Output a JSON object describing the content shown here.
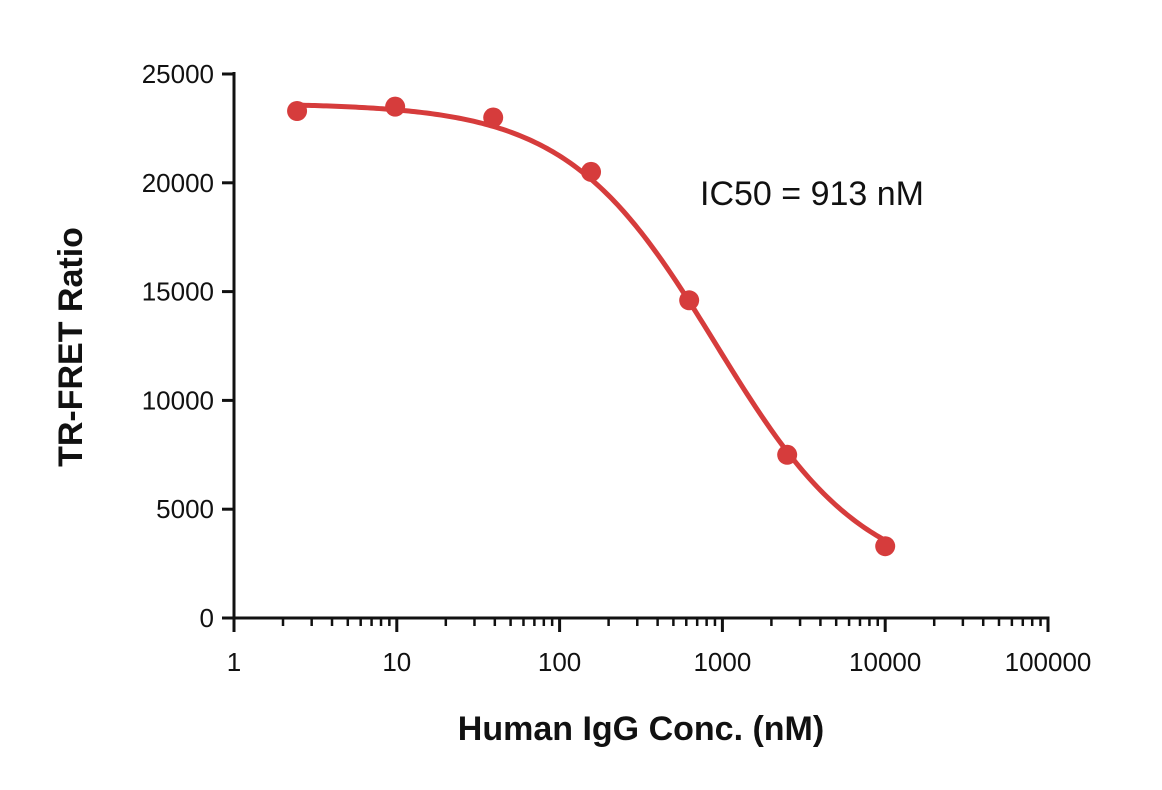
{
  "chart_data": {
    "type": "scatter",
    "title": "",
    "xlabel": "Human IgG Conc. (nM)",
    "ylabel": "TR-FRET Ratio",
    "x_scale": "log",
    "xlim": [
      1,
      100000
    ],
    "ylim": [
      0,
      25000
    ],
    "x_tick_labels": [
      "1",
      "10",
      "100",
      "1000",
      "10000",
      "100000"
    ],
    "y_tick_labels": [
      "0",
      "5000",
      "10000",
      "15000",
      "20000",
      "25000"
    ],
    "x_ticks": [
      1,
      10,
      100,
      1000,
      10000,
      100000
    ],
    "y_ticks": [
      0,
      5000,
      10000,
      15000,
      20000,
      25000
    ],
    "grid": false,
    "series": [
      {
        "x": [
          2.44,
          9.77,
          39.1,
          156,
          625,
          2500,
          10000
        ],
        "y": [
          23300,
          23500,
          23000,
          20500,
          14600,
          7500,
          3300
        ],
        "color": "#d63c3c"
      }
    ],
    "fit": {
      "model": "four-parameter logistic",
      "top": 23650,
      "bottom": 1500,
      "ic50": 913,
      "hill_slope": 0.95,
      "color": "#d63c3c"
    },
    "annotations": [
      {
        "text": "IC50 = 913 nM"
      }
    ]
  }
}
